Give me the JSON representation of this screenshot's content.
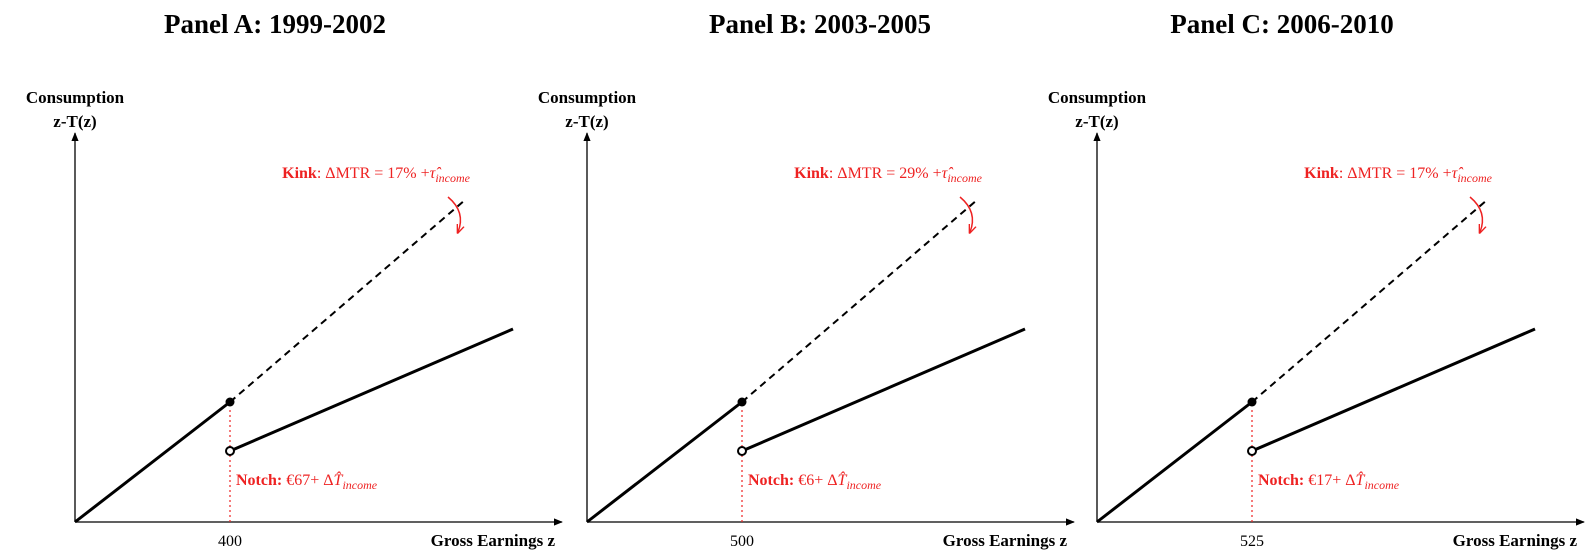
{
  "panels": [
    {
      "title": "Panel A: 1999-2002",
      "y_label": "Consumption",
      "y_sublabel": "z-T(z)",
      "x_label": "Gross Earnings z",
      "threshold": 400,
      "kink": {
        "bold": "Kink",
        "text": ": ΔMTR = 17% +",
        "symbol": "τ̂",
        "subscript": "income"
      },
      "notch": {
        "bold": "Notch:",
        "text": " €67+ Δ",
        "symbol": "T̂",
        "subscript": "income"
      }
    },
    {
      "title": "Panel B: 2003-2005",
      "y_label": "Consumption",
      "y_sublabel": "z-T(z)",
      "x_label": "Gross Earnings z",
      "threshold": 500,
      "kink": {
        "bold": "Kink",
        "text": ": ΔMTR = 29% +",
        "symbol": "τ̂",
        "subscript": "income"
      },
      "notch": {
        "bold": "Notch:",
        "text": " €6+ Δ",
        "symbol": "T̂",
        "subscript": "income"
      }
    },
    {
      "title": "Panel C: 2006-2010",
      "y_label": "Consumption",
      "y_sublabel": "z-T(z)",
      "x_label": "Gross Earnings z",
      "threshold": 525,
      "kink": {
        "bold": "Kink",
        "text": ": ΔMTR = 17% +",
        "symbol": "τ̂",
        "subscript": "income"
      },
      "notch": {
        "bold": "Notch:",
        "text": " €17+ Δ",
        "symbol": "T̂",
        "subscript": "income"
      }
    }
  ]
}
